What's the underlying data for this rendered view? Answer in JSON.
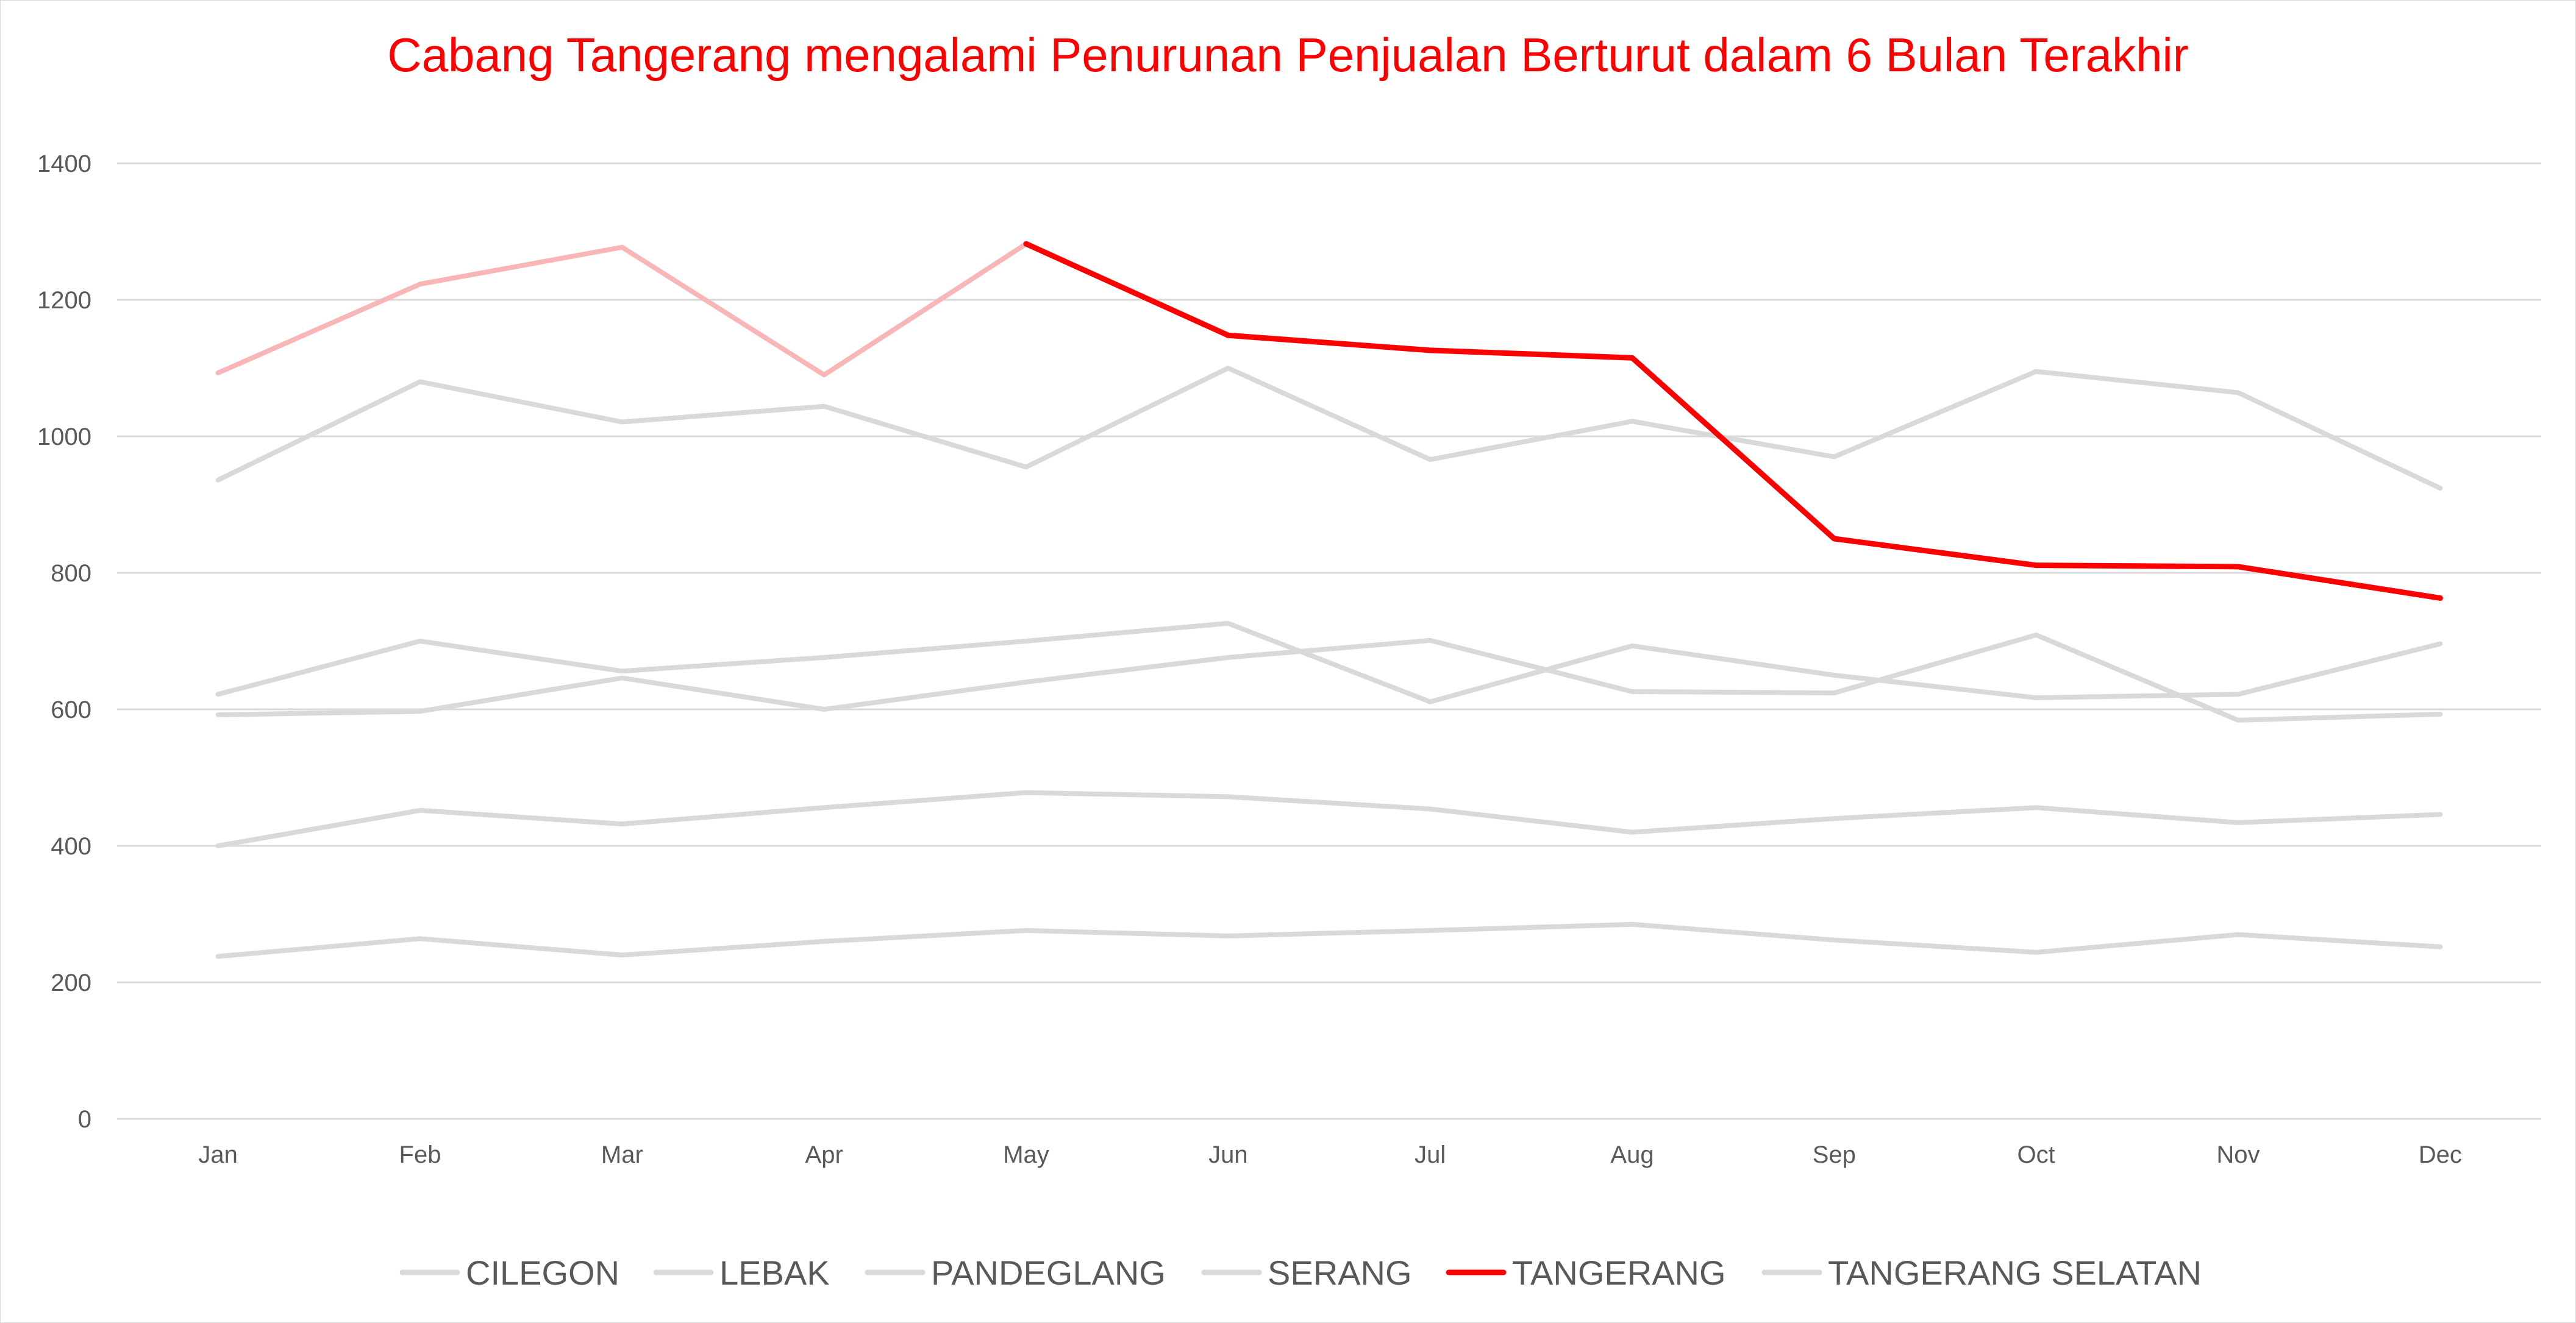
{
  "chart_data": {
    "type": "line",
    "title": "Cabang Tangerang mengalami Penurunan Penjualan Berturut  dalam 6 Bulan Terakhir",
    "xlabel": "",
    "ylabel": "",
    "ylim": [
      0,
      1400
    ],
    "yticks": [
      "0",
      "200",
      "400",
      "600",
      "800",
      "1000",
      "1200",
      "1400"
    ],
    "grid": true,
    "legend_position": "bottom",
    "categories": [
      "Jan",
      "Feb",
      "Mar",
      "Apr",
      "May",
      "Jun",
      "Jul",
      "Aug",
      "Sep",
      "Oct",
      "Nov",
      "Dec"
    ],
    "colors": {
      "muted": "#d9d9d9",
      "highlight": "#ff0000",
      "highlight_faded": "#f8b6b6",
      "grid": "#d9d9d9",
      "text": "#595959"
    },
    "series": [
      {
        "name": "CILEGON",
        "values": [
          238,
          264,
          240,
          260,
          276,
          268,
          276,
          285,
          262,
          244,
          270,
          252
        ]
      },
      {
        "name": "LEBAK",
        "values": [
          400,
          452,
          432,
          456,
          478,
          472,
          454,
          420,
          440,
          456,
          434,
          446
        ]
      },
      {
        "name": "PANDEGLANG",
        "values": [
          592,
          597,
          646,
          600,
          640,
          676,
          701,
          626,
          624,
          709,
          584,
          593
        ]
      },
      {
        "name": "SERANG",
        "values": [
          622,
          700,
          656,
          676,
          700,
          726,
          611,
          693,
          650,
          617,
          622,
          696
        ]
      },
      {
        "name": "TANGERANG",
        "highlight": true,
        "highlight_from": "May",
        "values": [
          1093,
          1223,
          1277,
          1090,
          1282,
          1148,
          1126,
          1115,
          850,
          811,
          809,
          763
        ]
      },
      {
        "name": "TANGERANG SELATAN",
        "values": [
          936,
          1080,
          1021,
          1044,
          955,
          1100,
          966,
          1022,
          970,
          1095,
          1064,
          924
        ]
      }
    ]
  }
}
